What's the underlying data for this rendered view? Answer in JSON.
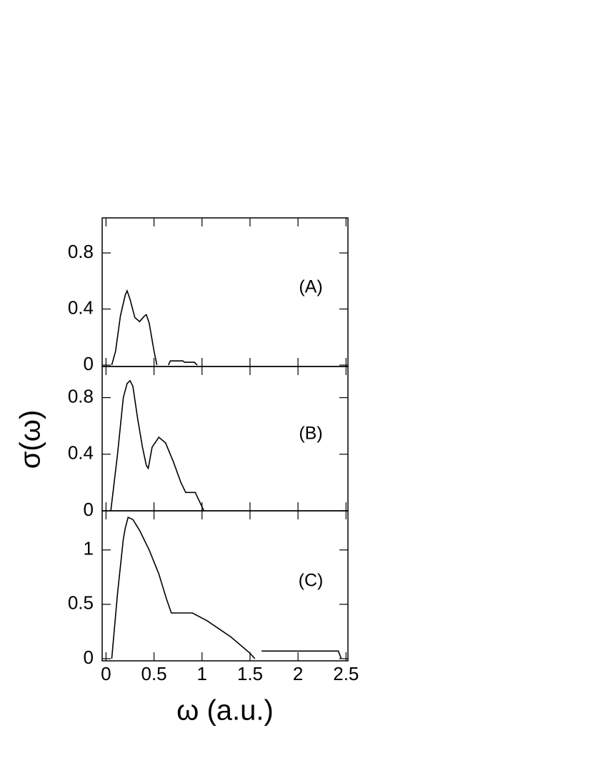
{
  "chart_data": [
    {
      "type": "line",
      "label": "(A)",
      "xlim": [
        -0.04,
        2.52
      ],
      "ylim": [
        -0.01,
        1.05
      ],
      "yticks": [
        0,
        0.4,
        0.8
      ],
      "series": [
        {
          "color": "#000000",
          "x": [
            0.06,
            0.1,
            0.15,
            0.2,
            0.22,
            0.25,
            0.3,
            0.35,
            0.4,
            0.42,
            0.45,
            0.5,
            0.53,
            0.6,
            0.65,
            0.67,
            0.8,
            0.82,
            0.92,
            0.95
          ],
          "values": [
            0,
            0.1,
            0.35,
            0.5,
            0.53,
            0.47,
            0.34,
            0.31,
            0.35,
            0.36,
            0.3,
            0.1,
            0,
            null,
            0,
            0.03,
            0.03,
            0.02,
            0.02,
            0
          ]
        }
      ]
    },
    {
      "type": "line",
      "label": "(B)",
      "ylabel": "σ(ω)",
      "xlim": [
        -0.04,
        2.52
      ],
      "ylim": [
        0,
        1.02
      ],
      "yticks": [
        0,
        0.4,
        0.8
      ],
      "series": [
        {
          "color": "#000000",
          "x": [
            0.05,
            0.12,
            0.18,
            0.22,
            0.25,
            0.28,
            0.33,
            0.38,
            0.42,
            0.44,
            0.48,
            0.55,
            0.62,
            0.7,
            0.78,
            0.83,
            0.93,
            1.02
          ],
          "values": [
            0,
            0.4,
            0.8,
            0.9,
            0.92,
            0.88,
            0.65,
            0.45,
            0.32,
            0.3,
            0.45,
            0.52,
            0.48,
            0.35,
            0.2,
            0.13,
            0.13,
            0
          ]
        }
      ]
    },
    {
      "type": "line",
      "label": "(C)",
      "xlabel": "ω (a.u.)",
      "xlim": [
        -0.04,
        2.52
      ],
      "ylim": [
        -0.02,
        1.36
      ],
      "xticks": [
        0,
        0.5,
        1,
        1.5,
        2,
        2.5
      ],
      "yticks": [
        0,
        0.5,
        1
      ],
      "series": [
        {
          "color": "#000000",
          "x": [
            0.06,
            0.12,
            0.18,
            0.2,
            0.23,
            0.28,
            0.35,
            0.45,
            0.55,
            0.63,
            0.68,
            0.9,
            1.05,
            1.3,
            1.5,
            1.55,
            1.58,
            1.62,
            2.42,
            2.45
          ],
          "values": [
            0,
            0.6,
            1.1,
            1.2,
            1.3,
            1.28,
            1.18,
            1.0,
            0.78,
            0.55,
            0.42,
            0.42,
            0.35,
            0.2,
            0.05,
            0,
            null,
            0.07,
            0.07,
            0
          ]
        }
      ]
    }
  ]
}
